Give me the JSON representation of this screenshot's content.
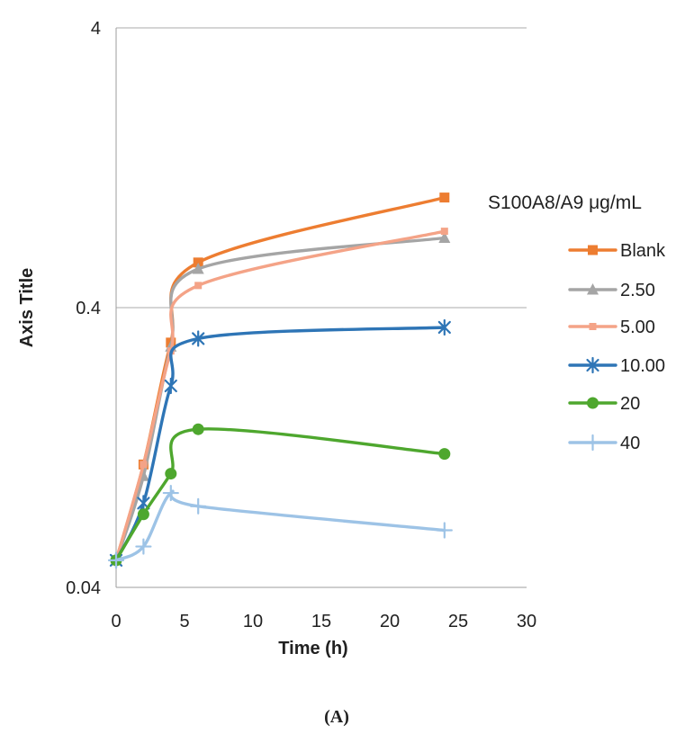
{
  "chart_data": {
    "type": "line",
    "x_label": "Time (h)",
    "y_label": "Axis Title",
    "caption": "(A)",
    "x": [
      0,
      2,
      4,
      6,
      24
    ],
    "x_ticks": [
      "0",
      "5",
      "10",
      "15",
      "20",
      "25",
      "30"
    ],
    "x_tick_values": [
      0,
      5,
      10,
      15,
      20,
      25,
      30
    ],
    "x_range": [
      0,
      30
    ],
    "y_scale": "log",
    "y_ticks": [
      "4",
      "0.4",
      "0.04"
    ],
    "y_tick_values": [
      4,
      0.4,
      0.04
    ],
    "y_range": [
      0.04,
      4
    ],
    "grid": "horizontal-major-decades",
    "legend": {
      "title": "S100A8/A9 μg/mL",
      "position": "right",
      "entries": [
        "Blank",
        "2.50",
        "5.00",
        "10.00",
        "20",
        "40"
      ]
    },
    "series": [
      {
        "name": "Blank",
        "color": "#ED7D31",
        "marker": "square",
        "values": [
          0.05,
          0.11,
          0.3,
          0.58,
          0.99
        ]
      },
      {
        "name": "2.50",
        "color": "#A5A5A5",
        "marker": "triangle",
        "values": [
          0.05,
          0.1,
          0.29,
          0.55,
          0.71
        ]
      },
      {
        "name": "5.00",
        "color": "#F4A387",
        "marker": "small-square",
        "values": [
          0.05,
          0.11,
          0.28,
          0.48,
          0.75
        ]
      },
      {
        "name": "10.00",
        "color": "#2E75B6",
        "marker": "star",
        "values": [
          0.05,
          0.08,
          0.21,
          0.31,
          0.34
        ]
      },
      {
        "name": "20",
        "color": "#4EA72E",
        "marker": "circle",
        "values": [
          0.05,
          0.073,
          0.102,
          0.147,
          0.12
        ]
      },
      {
        "name": "40",
        "color": "#9DC3E6",
        "marker": "plus",
        "values": [
          0.05,
          0.056,
          0.087,
          0.078,
          0.064
        ]
      }
    ],
    "style_colors": {
      "gridline": "#ABABAB",
      "axis_line": "#9E9E9E",
      "text": "#212121"
    }
  }
}
